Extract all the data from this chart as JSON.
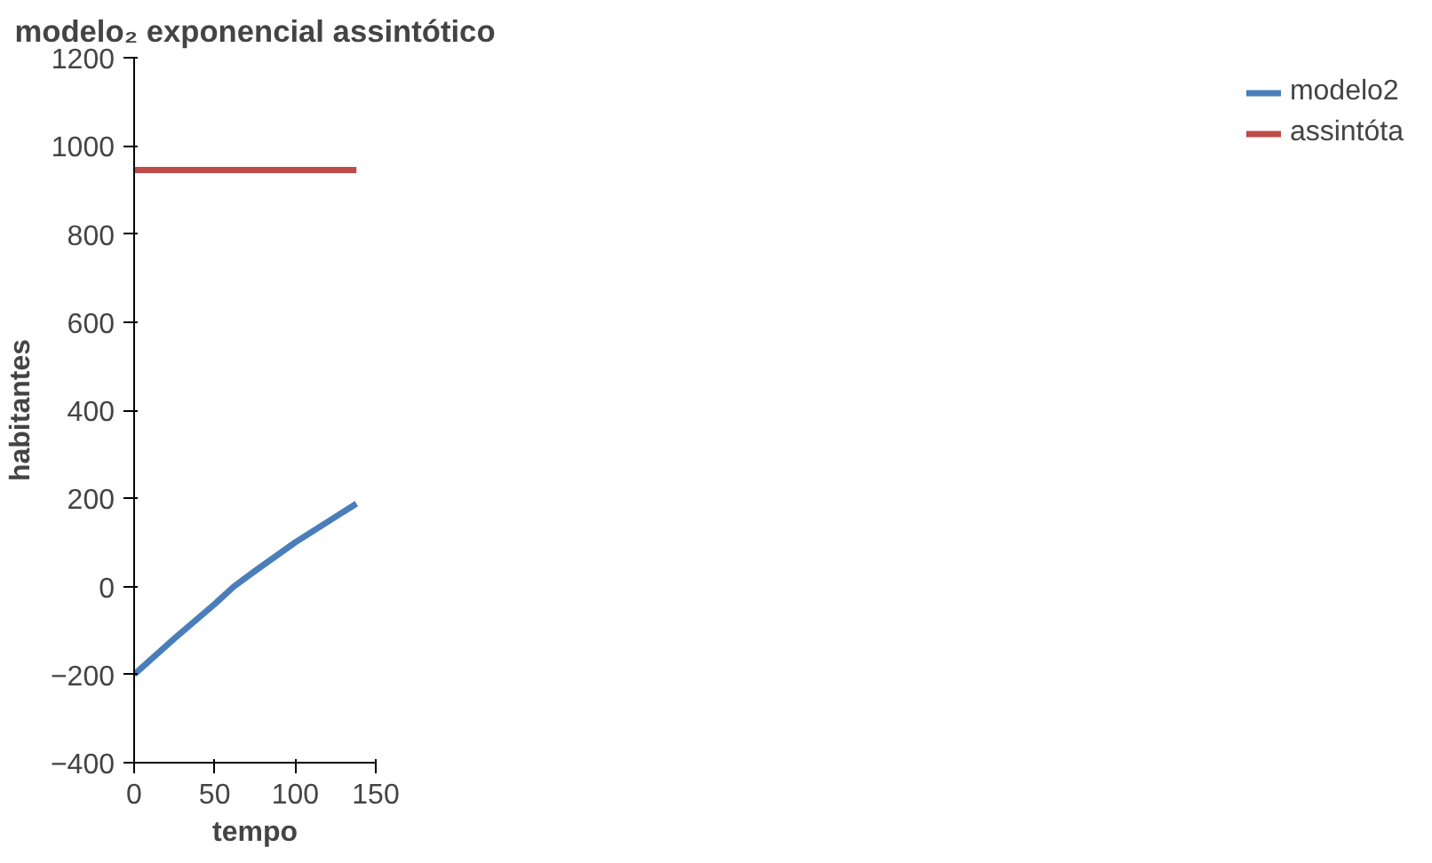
{
  "chart_data": {
    "type": "line",
    "title": "modelo₂ exponencial assintótico",
    "xlabel": "tempo",
    "ylabel": "habitantes",
    "xlim": [
      0,
      150
    ],
    "xticks": [
      0,
      50,
      100,
      150
    ],
    "ylim": [
      -400,
      1200
    ],
    "yticks": [
      -400,
      -200,
      0,
      200,
      400,
      600,
      800,
      1000,
      1200
    ],
    "grid": false,
    "legend": "right",
    "marker": "none",
    "line_style": "solid",
    "series": [
      {
        "name": "modelo2",
        "color": "#4a7ebb",
        "x": [
          0,
          25,
          50,
          62,
          75,
          100,
          125,
          138
        ],
        "values": [
          -200,
          -118,
          -40,
          0,
          35,
          100,
          158,
          188
        ]
      },
      {
        "name": "assintóta",
        "color": "#be4b48",
        "x": [
          0,
          138
        ],
        "values": [
          945,
          945
        ]
      }
    ]
  }
}
